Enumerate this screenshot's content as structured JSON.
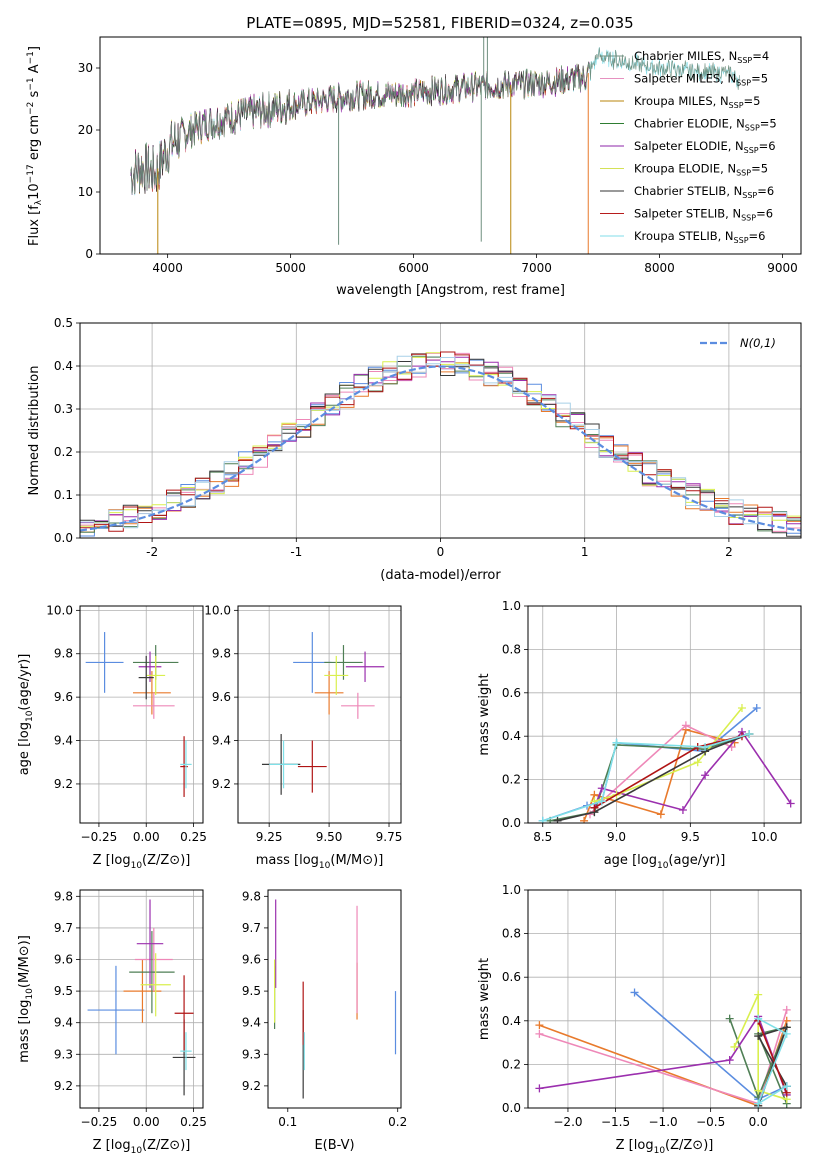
{
  "title": "PLATE=0895, MJD=52581, FIBERID=0324, z=0.035",
  "colors": {
    "Chabrier MILES": "#6f8f7f",
    "Salpeter MILES": "#e691c0",
    "Kroupa MILES": "#b8860b",
    "Chabrier ELODIE": "#2e7d32",
    "Salpeter ELODIE": "#8e24aa",
    "Kroupa ELODIE": "#d4e157",
    "Chabrier STELIB": "#333333",
    "Salpeter STELIB": "#b71c1c",
    "Kroupa STELIB": "#80deea",
    "blue": "#5b8de0",
    "orange": "#e87a2c",
    "pink": "#ee88b8",
    "green": "#4f7f55",
    "purple": "#9b2fae",
    "yellow": "#d9ef4f",
    "dark": "#3a3a3a",
    "red": "#b01515",
    "cyan": "#7fe0e8",
    "lightblue": "#a8d0e8",
    "normal": "#5b8de0"
  },
  "chart_data": [
    {
      "type": "line",
      "title": "PLATE=0895, MJD=52581, FIBERID=0324, z=0.035",
      "xlabel": "wavelength [Angstrom, rest frame]",
      "ylabel": "Flux [fλ10⁻¹⁷ erg cm⁻² s⁻¹ A⁻¹]",
      "xlim": [
        3450,
        9150
      ],
      "ylim": [
        0,
        35
      ],
      "xticks": [
        4000,
        5000,
        6000,
        7000,
        8000,
        9000
      ],
      "yticks": [
        0,
        10,
        20,
        30
      ],
      "grid": false,
      "legend_position": "right",
      "legend": [
        {
          "label": "Chabrier MILES, N",
          "sub": "SSP",
          "tail": "=4",
          "color": "Chabrier MILES"
        },
        {
          "label": "Salpeter MILES, N",
          "sub": "SSP",
          "tail": "=5",
          "color": "Salpeter MILES"
        },
        {
          "label": "Kroupa MILES, N",
          "sub": "SSP",
          "tail": "=5",
          "color": "Kroupa MILES"
        },
        {
          "label": "Chabrier ELODIE, N",
          "sub": "SSP",
          "tail": "=5",
          "color": "Chabrier ELODIE"
        },
        {
          "label": "Salpeter ELODIE, N",
          "sub": "SSP",
          "tail": "=6",
          "color": "Salpeter ELODIE"
        },
        {
          "label": "Kroupa ELODIE, N",
          "sub": "SSP",
          "tail": "=5",
          "color": "Kroupa ELODIE"
        },
        {
          "label": "Chabrier STELIB, N",
          "sub": "SSP",
          "tail": "=6",
          "color": "Chabrier STELIB"
        },
        {
          "label": "Salpeter STELIB, N",
          "sub": "SSP",
          "tail": "=6",
          "color": "Salpeter STELIB"
        },
        {
          "label": "Kroupa STELIB, N",
          "sub": "SSP",
          "tail": "=6",
          "color": "Kroupa STELIB"
        }
      ],
      "spectrum_anchors": [
        [
          3700,
          13
        ],
        [
          3800,
          14
        ],
        [
          3900,
          13
        ],
        [
          4000,
          17
        ],
        [
          4100,
          19
        ],
        [
          4300,
          21
        ],
        [
          4500,
          22
        ],
        [
          5000,
          24
        ],
        [
          5500,
          25.5
        ],
        [
          6000,
          26
        ],
        [
          6500,
          27
        ],
        [
          7000,
          27.5
        ],
        [
          7400,
          28.5
        ],
        [
          7500,
          32
        ],
        [
          7700,
          31
        ],
        [
          8000,
          30
        ],
        [
          8300,
          29.5
        ],
        [
          8600,
          29
        ],
        [
          8650,
          28
        ]
      ],
      "model_end": 7430,
      "observed_range": [
        3700,
        8650
      ],
      "dropouts": [
        {
          "x": 3920,
          "y": 0,
          "color": "Kroupa MILES"
        },
        {
          "x": 6790,
          "y": 0,
          "color": "Kroupa MILES"
        },
        {
          "x": 7420,
          "y": 0,
          "color": "orange"
        },
        {
          "x": 5390,
          "y": 1.5,
          "color": "Chabrier MILES"
        },
        {
          "x": 6550,
          "y": 2,
          "color": "Chabrier MILES"
        },
        {
          "x": 6570,
          "y": 35,
          "color": "Chabrier MILES"
        },
        {
          "x": 6600,
          "y": 35,
          "color": "Chabrier MILES"
        }
      ]
    },
    {
      "type": "step",
      "xlabel": "(data-model)/error",
      "ylabel": "Normed distribution",
      "xlim": [
        -2.5,
        2.5
      ],
      "ylim": [
        0,
        0.5
      ],
      "xticks": [
        -2,
        -1,
        0,
        1,
        2
      ],
      "yticks": [
        0.0,
        0.1,
        0.2,
        0.3,
        0.4,
        0.5
      ],
      "grid": true,
      "legend_position": "top-right",
      "normal_label": "N(0,1)",
      "bin_width": 0.1,
      "n_histograms": 9,
      "histogram_colors": [
        "blue",
        "orange",
        "pink",
        "green",
        "purple",
        "yellow",
        "dark",
        "red",
        "lightblue"
      ]
    },
    {
      "type": "scatter",
      "xlabel": "Z [log10(Z/Z⊙)]",
      "ylabel": "age  [log10(age/yr)]",
      "xlim": [
        -0.35,
        0.3
      ],
      "ylim": [
        9.02,
        10.02
      ],
      "xticks": [
        -0.25,
        0.0,
        0.25
      ],
      "xtick_labels": [
        "−0.25",
        "0.00",
        "0.25"
      ],
      "yticks": [
        9.2,
        9.4,
        9.6,
        9.8,
        10.0
      ],
      "grid": true,
      "points": [
        {
          "x": -0.22,
          "y": 9.76,
          "xerr": 0.1,
          "yerr": 0.14,
          "color": "blue"
        },
        {
          "x": 0.03,
          "y": 9.62,
          "xerr": 0.1,
          "yerr": 0.1,
          "color": "orange"
        },
        {
          "x": 0.04,
          "y": 9.56,
          "xerr": 0.11,
          "yerr": 0.06,
          "color": "pink"
        },
        {
          "x": 0.05,
          "y": 9.76,
          "xerr": 0.12,
          "yerr": 0.08,
          "color": "green"
        },
        {
          "x": 0.02,
          "y": 9.74,
          "xerr": 0.06,
          "yerr": 0.07,
          "color": "purple"
        },
        {
          "x": 0.05,
          "y": 9.7,
          "xerr": 0.05,
          "yerr": 0.09,
          "color": "yellow"
        },
        {
          "x": 0.0,
          "y": 9.69,
          "xerr": 0.04,
          "yerr": 0.1,
          "color": "dark"
        },
        {
          "x": 0.2,
          "y": 9.28,
          "xerr": 0.02,
          "yerr": 0.14,
          "color": "red"
        },
        {
          "x": 0.21,
          "y": 9.29,
          "xerr": 0.03,
          "yerr": 0.11,
          "color": "cyan"
        }
      ]
    },
    {
      "type": "scatter",
      "xlabel": "mass [log10(M/M⊙)]",
      "ylabel": "",
      "xlim": [
        9.12,
        9.8
      ],
      "ylim": [
        9.02,
        10.02
      ],
      "xticks": [
        9.25,
        9.5,
        9.75
      ],
      "xtick_labels": [
        "9.25",
        "9.50",
        "9.75"
      ],
      "yticks": [
        9.2,
        9.4,
        9.6,
        9.8,
        10.0
      ],
      "grid": true,
      "points": [
        {
          "x": 9.43,
          "y": 9.76,
          "xerr": 0.08,
          "yerr": 0.14,
          "color": "blue"
        },
        {
          "x": 9.5,
          "y": 9.62,
          "xerr": 0.06,
          "yerr": 0.1,
          "color": "orange"
        },
        {
          "x": 9.62,
          "y": 9.56,
          "xerr": 0.07,
          "yerr": 0.06,
          "color": "pink"
        },
        {
          "x": 9.56,
          "y": 9.76,
          "xerr": 0.08,
          "yerr": 0.08,
          "color": "green"
        },
        {
          "x": 9.65,
          "y": 9.74,
          "xerr": 0.08,
          "yerr": 0.07,
          "color": "purple"
        },
        {
          "x": 9.53,
          "y": 9.7,
          "xerr": 0.05,
          "yerr": 0.09,
          "color": "yellow"
        },
        {
          "x": 9.3,
          "y": 9.29,
          "xerr": 0.08,
          "yerr": 0.14,
          "color": "dark"
        },
        {
          "x": 9.43,
          "y": 9.28,
          "xerr": 0.06,
          "yerr": 0.12,
          "color": "red"
        },
        {
          "x": 9.31,
          "y": 9.29,
          "xerr": 0.06,
          "yerr": 0.11,
          "color": "cyan"
        }
      ]
    },
    {
      "type": "line",
      "xlabel": "age  [log10(age/yr)]",
      "ylabel": "mass weight",
      "xlim": [
        8.4,
        10.25
      ],
      "ylim": [
        0,
        1.0
      ],
      "xticks": [
        8.5,
        9.0,
        9.5,
        10.0
      ],
      "xtick_labels": [
        "8.5",
        "9.0",
        "9.5",
        "10.0"
      ],
      "yticks": [
        0.0,
        0.2,
        0.4,
        0.6,
        0.8,
        1.0
      ],
      "grid": true,
      "series": [
        {
          "color": "blue",
          "x": [
            8.5,
            8.8,
            8.9,
            9.0,
            9.6,
            9.95
          ],
          "y": [
            0.01,
            0.08,
            0.1,
            0.37,
            0.33,
            0.53
          ]
        },
        {
          "color": "orange",
          "x": [
            8.78,
            8.85,
            9.3,
            9.47,
            9.8
          ],
          "y": [
            0.01,
            0.13,
            0.04,
            0.43,
            0.37
          ]
        },
        {
          "color": "pink",
          "x": [
            8.82,
            8.9,
            9.47,
            9.78
          ],
          "y": [
            0.04,
            0.1,
            0.45,
            0.35
          ]
        },
        {
          "color": "green",
          "x": [
            8.55,
            8.85,
            9.0,
            9.6,
            9.9
          ],
          "y": [
            0.01,
            0.05,
            0.36,
            0.34,
            0.41
          ]
        },
        {
          "color": "purple",
          "x": [
            8.85,
            8.9,
            9.45,
            9.6,
            9.85,
            10.18
          ],
          "y": [
            0.07,
            0.16,
            0.06,
            0.22,
            0.42,
            0.09
          ]
        },
        {
          "color": "yellow",
          "x": [
            8.85,
            9.0,
            9.55,
            9.85
          ],
          "y": [
            0.1,
            0.13,
            0.28,
            0.53
          ]
        },
        {
          "color": "dark",
          "x": [
            8.6,
            8.85,
            9.6,
            9.9
          ],
          "y": [
            0.01,
            0.05,
            0.33,
            0.41
          ]
        },
        {
          "color": "red",
          "x": [
            8.85,
            9.55,
            9.85
          ],
          "y": [
            0.07,
            0.35,
            0.4
          ]
        },
        {
          "color": "cyan",
          "x": [
            8.5,
            8.9,
            9.0,
            9.6,
            9.9
          ],
          "y": [
            0.01,
            0.1,
            0.37,
            0.35,
            0.41
          ]
        }
      ]
    },
    {
      "type": "scatter",
      "xlabel": "Z [log10(Z/Z⊙)]",
      "ylabel": "mass [log10(M/M⊙)]",
      "xlim": [
        -0.35,
        0.3
      ],
      "ylim": [
        9.13,
        9.82
      ],
      "xticks": [
        -0.25,
        0.0,
        0.25
      ],
      "xtick_labels": [
        "−0.25",
        "0.00",
        "0.25"
      ],
      "yticks": [
        9.2,
        9.3,
        9.4,
        9.5,
        9.6,
        9.7,
        9.8
      ],
      "grid": true,
      "points": [
        {
          "x": -0.16,
          "y": 9.44,
          "xerr": 0.15,
          "yerr": 0.14,
          "color": "blue"
        },
        {
          "x": -0.02,
          "y": 9.5,
          "xerr": 0.1,
          "yerr": 0.1,
          "color": "orange"
        },
        {
          "x": 0.04,
          "y": 9.6,
          "xerr": 0.1,
          "yerr": 0.1,
          "color": "pink"
        },
        {
          "x": 0.03,
          "y": 9.56,
          "xerr": 0.12,
          "yerr": 0.13,
          "color": "green"
        },
        {
          "x": 0.02,
          "y": 9.65,
          "xerr": 0.07,
          "yerr": 0.14,
          "color": "purple"
        },
        {
          "x": 0.05,
          "y": 9.52,
          "xerr": 0.08,
          "yerr": 0.1,
          "color": "yellow"
        },
        {
          "x": 0.2,
          "y": 9.29,
          "xerr": 0.06,
          "yerr": 0.12,
          "color": "dark"
        },
        {
          "x": 0.2,
          "y": 9.43,
          "xerr": 0.05,
          "yerr": 0.12,
          "color": "red"
        },
        {
          "x": 0.21,
          "y": 9.31,
          "xerr": 0.03,
          "yerr": 0.06,
          "color": "cyan"
        }
      ]
    },
    {
      "type": "scatter",
      "xlabel": "E(B-V)",
      "ylabel": "",
      "xlim": [
        0.082,
        0.203
      ],
      "ylim": [
        9.13,
        9.82
      ],
      "xticks": [
        0.1,
        0.2
      ],
      "xtick_labels": [
        "0.1",
        "0.2"
      ],
      "yticks": [
        9.2,
        9.3,
        9.4,
        9.5,
        9.6,
        9.7,
        9.8
      ],
      "grid": false,
      "points": [
        {
          "x": 0.198,
          "y": 9.4,
          "yerr": 0.1,
          "color": "blue"
        },
        {
          "x": 0.163,
          "y": 9.5,
          "yerr": 0.09,
          "color": "orange"
        },
        {
          "x": 0.163,
          "y": 9.6,
          "yerr": 0.17,
          "color": "pink"
        },
        {
          "x": 0.088,
          "y": 9.48,
          "yerr": 0.1,
          "color": "green"
        },
        {
          "x": 0.089,
          "y": 9.65,
          "yerr": 0.14,
          "color": "purple"
        },
        {
          "x": 0.088,
          "y": 9.5,
          "yerr": 0.1,
          "color": "yellow"
        },
        {
          "x": 0.114,
          "y": 9.3,
          "yerr": 0.14,
          "color": "dark"
        },
        {
          "x": 0.114,
          "y": 9.43,
          "yerr": 0.1,
          "color": "red"
        },
        {
          "x": 0.115,
          "y": 9.31,
          "yerr": 0.06,
          "color": "cyan"
        }
      ]
    },
    {
      "type": "line",
      "xlabel": "Z [log10(Z/Z⊙)]",
      "ylabel": "mass weight",
      "xlim": [
        -2.42,
        0.45
      ],
      "ylim": [
        0,
        1.0
      ],
      "xticks": [
        -2.0,
        -1.5,
        -1.0,
        -0.5,
        0.0
      ],
      "xtick_labels": [
        "−2.0",
        "−1.5",
        "−1.0",
        "−0.5",
        "0.0"
      ],
      "yticks": [
        0.0,
        0.2,
        0.4,
        0.6,
        0.8,
        1.0
      ],
      "grid": true,
      "series": [
        {
          "color": "blue",
          "x": [
            -1.3,
            0.0,
            0.3
          ],
          "y": [
            0.53,
            0.04,
            0.1
          ]
        },
        {
          "color": "orange",
          "x": [
            -2.3,
            0.0,
            0.3
          ],
          "y": [
            0.38,
            0.01,
            0.4
          ]
        },
        {
          "color": "pink",
          "x": [
            -2.3,
            0.0,
            0.3
          ],
          "y": [
            0.34,
            0.02,
            0.45
          ]
        },
        {
          "color": "green",
          "x": [
            -0.3,
            0.0,
            0.3,
            0.0,
            0.3
          ],
          "y": [
            0.41,
            0.05,
            0.37,
            0.34,
            0.02
          ]
        },
        {
          "color": "purple",
          "x": [
            -2.3,
            -0.3,
            0.0,
            0.3
          ],
          "y": [
            0.09,
            0.22,
            0.42,
            0.06
          ]
        },
        {
          "color": "yellow",
          "x": [
            -0.25,
            0.0,
            0.0,
            0.3
          ],
          "y": [
            0.28,
            0.52,
            0.08,
            0.04
          ]
        },
        {
          "color": "dark",
          "x": [
            0.0,
            0.3,
            0.0,
            0.3
          ],
          "y": [
            0.01,
            0.37,
            0.33,
            0.1
          ]
        },
        {
          "color": "red",
          "x": [
            0.0,
            0.3
          ],
          "y": [
            0.4,
            0.07
          ]
        },
        {
          "color": "cyan",
          "x": [
            0.0,
            0.3,
            0.0,
            0.3
          ],
          "y": [
            0.41,
            0.34,
            0.02,
            0.1
          ]
        }
      ]
    }
  ]
}
